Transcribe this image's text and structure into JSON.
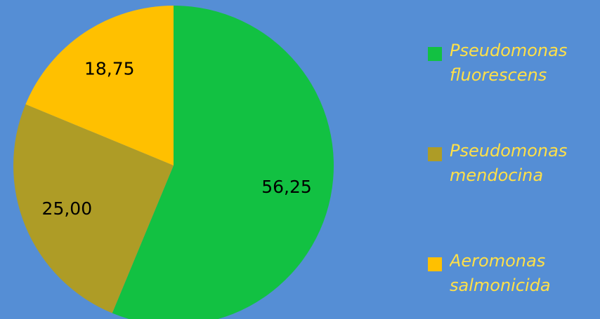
{
  "chart_data": {
    "type": "pie",
    "categories": [
      "Pseudomonas fluorescens",
      "Pseudomonas mendocina",
      "Aeromonas salmonicida"
    ],
    "values": [
      56.25,
      25.0,
      18.75
    ],
    "value_labels": [
      "56,25",
      "25,00",
      "18,75"
    ],
    "colors": [
      "#12c142",
      "#ae9c26",
      "#ffc000"
    ],
    "legend": "right"
  }
}
